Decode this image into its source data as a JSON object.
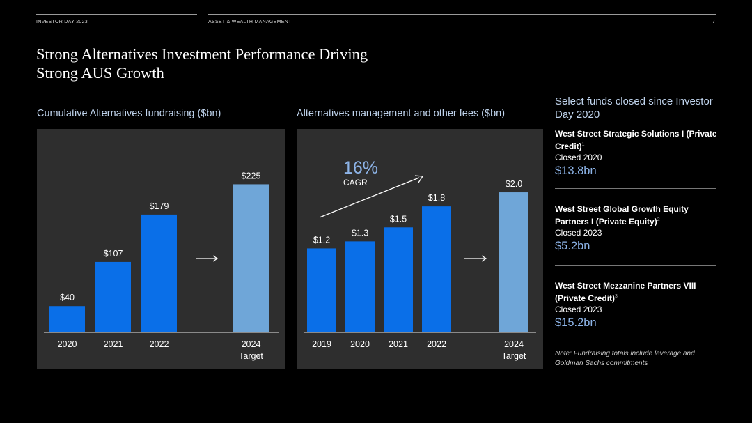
{
  "header": {
    "left": "INVESTOR DAY 2023",
    "center": "ASSET & WEALTH MANAGEMENT",
    "page": "7"
  },
  "title": {
    "line1": "Strong Alternatives Investment Performance Driving",
    "line2": "Strong AUS Growth"
  },
  "colors": {
    "bar": "#0a6fe8",
    "target_bar": "#6fa6d8",
    "panel": "#2e2e2e",
    "accent_text": "#8db4e8"
  },
  "chart_data": [
    {
      "type": "bar",
      "title": "Cumulative Alternatives fundraising ($bn)",
      "categories": [
        "2020",
        "2021",
        "2022",
        "2024"
      ],
      "sublabels": [
        "",
        "",
        "",
        "Target"
      ],
      "values": [
        40,
        107,
        179,
        225
      ],
      "value_labels": [
        "$40",
        "$107",
        "$179",
        "$225"
      ],
      "target_index": 3,
      "ylim": [
        0,
        235
      ]
    },
    {
      "type": "bar",
      "title": "Alternatives management and other fees ($bn)",
      "categories": [
        "2019",
        "2020",
        "2021",
        "2022",
        "2024"
      ],
      "sublabels": [
        "",
        "",
        "",
        "",
        "Target"
      ],
      "values": [
        1.2,
        1.3,
        1.5,
        1.8,
        2.0
      ],
      "value_labels": [
        "$1.2",
        "$1.3",
        "$1.5",
        "$1.8",
        "$2.0"
      ],
      "target_index": 4,
      "ylim": [
        0,
        2.09
      ],
      "annotation": {
        "value": "16%",
        "label": "CAGR"
      }
    }
  ],
  "sidebar": {
    "heading": "Select funds closed since Investor Day 2020",
    "funds": [
      {
        "name": "West Street Strategic Solutions I (Private Credit)",
        "note": "1",
        "closed": "Closed 2020",
        "amount": "$13.8bn"
      },
      {
        "name": "West Street Global Growth Equity Partners I (Private Equity)",
        "note": "2",
        "closed": "Closed 2023",
        "amount": "$5.2bn"
      },
      {
        "name": "West Street Mezzanine Partners VIII (Private Credit)",
        "note": "3",
        "closed": "Closed 2023",
        "amount": "$15.2bn"
      }
    ],
    "footnote": "Note: Fundraising totals include leverage and Goldman Sachs commitments"
  }
}
